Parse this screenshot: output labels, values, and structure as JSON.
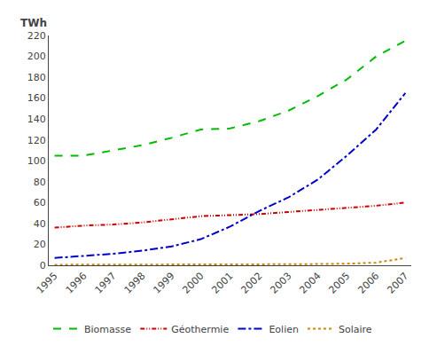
{
  "chart_data": {
    "type": "line",
    "ylabel": "TWh",
    "x": [
      1995,
      1996,
      1997,
      1998,
      1999,
      2000,
      2001,
      2002,
      2003,
      2004,
      2005,
      2006,
      2007
    ],
    "series": [
      {
        "name": "Biomasse",
        "color": "#00bb00",
        "line_style": "dashed",
        "values": [
          105,
          105,
          110,
          115,
          122,
          130,
          131,
          138,
          148,
          162,
          178,
          200,
          215
        ]
      },
      {
        "name": "Géothermie",
        "color": "#cc0000",
        "line_style": "dashdotdot",
        "values": [
          36,
          38,
          39,
          41,
          44,
          47,
          48,
          49,
          51,
          53,
          55,
          57,
          60
        ]
      },
      {
        "name": "Eolien",
        "color": "#0000cc",
        "line_style": "dashdot",
        "values": [
          7,
          9,
          11,
          14,
          18,
          25,
          37,
          52,
          65,
          82,
          105,
          130,
          165
        ]
      },
      {
        "name": "Solaire",
        "color": "#cc8800",
        "line_style": "dotted",
        "values": [
          0.5,
          0.5,
          0.5,
          0.5,
          0.6,
          0.6,
          0.7,
          0.8,
          1.0,
          1.2,
          1.5,
          2.5,
          7
        ]
      }
    ],
    "xlim": [
      1994.8,
      2007.2
    ],
    "xticks": [
      1995,
      1996,
      1997,
      1998,
      1999,
      2000,
      2001,
      2002,
      2003,
      2004,
      2005,
      2006,
      2007
    ],
    "ylim": [
      0,
      220
    ],
    "yticks": [
      0,
      20,
      40,
      60,
      80,
      100,
      120,
      140,
      160,
      180,
      200,
      220
    ],
    "grid": false,
    "legend": "bottom"
  }
}
